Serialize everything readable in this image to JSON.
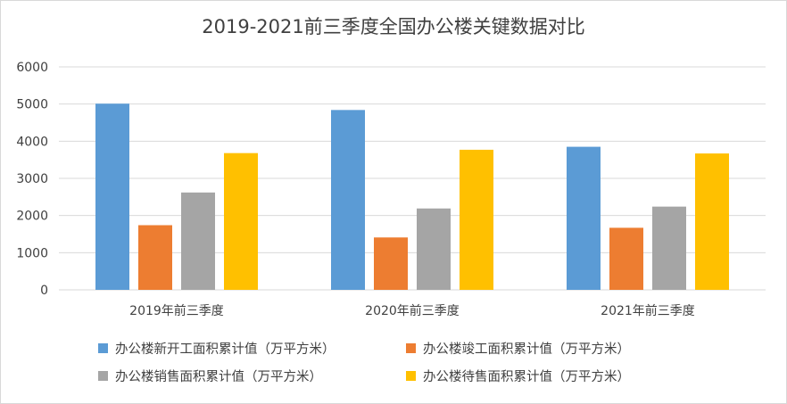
{
  "chart_data": {
    "type": "bar",
    "title": "2019-2021前三季度全国办公楼关键数据对比",
    "categories": [
      "2019年前三季度",
      "2020年前三季度",
      "2021年前三季度"
    ],
    "series": [
      {
        "name": "办公楼新开工面积累计值（万平方米）",
        "color": "#5b9bd5",
        "values": [
          5010,
          4840,
          3850
        ]
      },
      {
        "name": "办公楼竣工面积累计值（万平方米）",
        "color": "#ed7d31",
        "values": [
          1740,
          1410,
          1670
        ]
      },
      {
        "name": "办公楼销售面积累计值（万平方米）",
        "color": "#a5a5a5",
        "values": [
          2620,
          2190,
          2240
        ]
      },
      {
        "name": "办公楼待售面积累计值（万平方米）",
        "color": "#ffc000",
        "values": [
          3680,
          3770,
          3670
        ]
      }
    ],
    "yticks": [
      "0",
      "1000",
      "2000",
      "3000",
      "4000",
      "5000",
      "6000"
    ],
    "ylim": [
      0,
      6000
    ],
    "grid": true,
    "legend_position": "bottom",
    "xlabel": "",
    "ylabel": ""
  }
}
